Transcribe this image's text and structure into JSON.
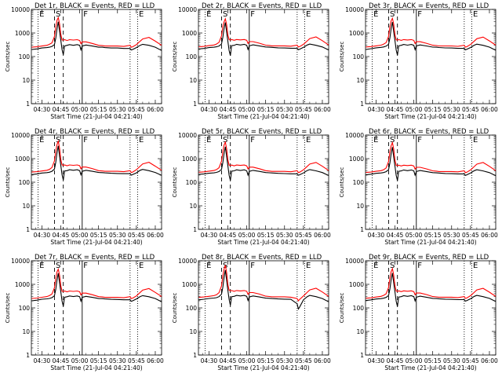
{
  "chart_data": {
    "type": "line",
    "shared": {
      "xlabel": "Start Time (21-Jul-04 04:21:40)",
      "ylabel": "Counts/sec",
      "x_ticks": [
        "04:30",
        "04:45",
        "05:00",
        "05:15",
        "05:30",
        "05:45",
        "06:00"
      ],
      "x_tick_minutes": [
        30,
        45,
        60,
        75,
        90,
        105,
        120
      ],
      "xlim_minutes": [
        21.67,
        125
      ],
      "y_scale": "log",
      "ylim": [
        1,
        10000
      ],
      "y_ticks": [
        "1",
        "10",
        "100",
        "1000",
        "10000"
      ],
      "grid": false,
      "colors": {
        "events": "#000000",
        "lld": "#ff0000"
      },
      "markers": [
        {
          "label": "E",
          "x_minute": 27,
          "style": "dotted"
        },
        {
          "label": "S",
          "x_minute": 40,
          "style": "dashed"
        },
        {
          "label": "",
          "x_minute": 47,
          "style": "dashed"
        },
        {
          "label": "F",
          "x_minute": 62,
          "style": "solid"
        },
        {
          "label": "",
          "x_minute": 100,
          "style": "dotted"
        },
        {
          "label": "E",
          "x_minute": 106,
          "style": "dotted"
        }
      ],
      "x_minutes": [
        22,
        26,
        30,
        34,
        36,
        38,
        40,
        41,
        42,
        43,
        44,
        45,
        46,
        47,
        48,
        50,
        52,
        55,
        58,
        60,
        61,
        62,
        65,
        70,
        75,
        78,
        80,
        85,
        90,
        95,
        100,
        101,
        102,
        105,
        108,
        110,
        115,
        120,
        125
      ]
    },
    "panels": [
      {
        "title": "Det 1r, BLACK = Events, RED = LLD",
        "events": [
          200,
          210,
          230,
          240,
          250,
          270,
          320,
          600,
          1500,
          3000,
          1200,
          500,
          200,
          120,
          280,
          300,
          320,
          300,
          320,
          300,
          190,
          280,
          310,
          280,
          250,
          250,
          240,
          230,
          230,
          220,
          220,
          190,
          200,
          240,
          300,
          330,
          300,
          250,
          180
        ],
        "lld": [
          250,
          260,
          280,
          300,
          330,
          380,
          700,
          1800,
          3500,
          4500,
          2500,
          900,
          500,
          500,
          520,
          480,
          520,
          500,
          520,
          480,
          350,
          420,
          420,
          360,
          300,
          290,
          280,
          280,
          280,
          270,
          300,
          250,
          260,
          320,
          450,
          560,
          650,
          450,
          300
        ]
      },
      {
        "title": "Det 2r, BLACK = Events, RED = LLD",
        "events": [
          210,
          220,
          240,
          250,
          260,
          280,
          340,
          650,
          1600,
          2800,
          1100,
          450,
          180,
          110,
          290,
          300,
          330,
          310,
          330,
          300,
          200,
          285,
          315,
          285,
          255,
          250,
          245,
          235,
          230,
          225,
          225,
          195,
          205,
          245,
          310,
          340,
          300,
          255,
          190
        ],
        "lld": [
          260,
          270,
          290,
          310,
          340,
          400,
          750,
          1900,
          3000,
          4000,
          2300,
          850,
          520,
          500,
          530,
          490,
          530,
          510,
          530,
          490,
          360,
          430,
          430,
          370,
          305,
          295,
          285,
          285,
          285,
          275,
          305,
          255,
          265,
          330,
          460,
          580,
          680,
          470,
          310
        ]
      },
      {
        "title": "Det 3r, BLACK = Events, RED = LLD",
        "events": [
          200,
          215,
          235,
          245,
          255,
          275,
          330,
          620,
          1550,
          2900,
          1150,
          480,
          190,
          115,
          285,
          300,
          325,
          305,
          325,
          300,
          195,
          282,
          312,
          282,
          252,
          250,
          242,
          232,
          230,
          222,
          222,
          192,
          202,
          242,
          305,
          335,
          300,
          252,
          185
        ],
        "lld": [
          255,
          265,
          285,
          305,
          335,
          390,
          720,
          1850,
          3300,
          4200,
          2400,
          880,
          510,
          500,
          525,
          485,
          525,
          505,
          525,
          485,
          355,
          425,
          425,
          365,
          302,
          292,
          282,
          282,
          282,
          272,
          302,
          252,
          262,
          325,
          455,
          570,
          670,
          460,
          305
        ]
      },
      {
        "title": "Det 4r, BLACK = Events, RED = LLD",
        "events": [
          210,
          225,
          245,
          255,
          265,
          290,
          360,
          700,
          1800,
          3500,
          1300,
          520,
          210,
          125,
          300,
          310,
          340,
          320,
          340,
          310,
          205,
          290,
          320,
          290,
          260,
          255,
          250,
          240,
          235,
          230,
          230,
          200,
          210,
          250,
          320,
          350,
          310,
          260,
          195
        ],
        "lld": [
          270,
          280,
          300,
          320,
          350,
          420,
          800,
          2100,
          4000,
          5500,
          2800,
          950,
          540,
          520,
          540,
          500,
          540,
          520,
          540,
          500,
          370,
          440,
          440,
          380,
          310,
          300,
          290,
          290,
          290,
          280,
          310,
          260,
          270,
          340,
          480,
          600,
          700,
          480,
          320
        ]
      },
      {
        "title": "Det 5r, BLACK = Events, RED = LLD",
        "events": [
          215,
          225,
          240,
          250,
          262,
          285,
          350,
          680,
          1700,
          3200,
          1250,
          500,
          200,
          120,
          295,
          305,
          335,
          315,
          335,
          305,
          200,
          288,
          318,
          288,
          258,
          252,
          248,
          238,
          232,
          228,
          228,
          198,
          208,
          248,
          315,
          345,
          305,
          258,
          192
        ],
        "lld": [
          265,
          275,
          295,
          315,
          345,
          410,
          780,
          2000,
          3800,
          5000,
          2700,
          920,
          530,
          510,
          535,
          495,
          535,
          515,
          535,
          495,
          365,
          435,
          435,
          375,
          308,
          298,
          288,
          288,
          288,
          278,
          308,
          258,
          268,
          335,
          470,
          590,
          690,
          475,
          315
        ]
      },
      {
        "title": "Det 6r, BLACK = Events, RED = LLD",
        "events": [
          205,
          218,
          238,
          248,
          258,
          280,
          340,
          660,
          1650,
          3100,
          1200,
          490,
          195,
          118,
          290,
          302,
          330,
          310,
          330,
          302,
          198,
          285,
          315,
          285,
          255,
          250,
          245,
          235,
          230,
          225,
          225,
          195,
          205,
          245,
          310,
          340,
          302,
          255,
          188
        ],
        "lld": [
          260,
          270,
          290,
          310,
          340,
          400,
          760,
          1950,
          3600,
          4800,
          2600,
          900,
          520,
          505,
          530,
          490,
          530,
          510,
          530,
          490,
          360,
          430,
          430,
          370,
          305,
          295,
          285,
          285,
          285,
          275,
          305,
          255,
          265,
          330,
          465,
          585,
          685,
          470,
          310
        ]
      },
      {
        "title": "Det 7r, BLACK = Events, RED = LLD",
        "events": [
          200,
          212,
          232,
          242,
          252,
          272,
          325,
          610,
          1520,
          2950,
          1180,
          490,
          195,
          118,
          282,
          298,
          322,
          302,
          322,
          298,
          192,
          280,
          310,
          280,
          250,
          248,
          240,
          230,
          228,
          220,
          220,
          190,
          200,
          240,
          302,
          332,
          298,
          250,
          182
        ],
        "lld": [
          252,
          262,
          282,
          302,
          332,
          385,
          710,
          1820,
          3400,
          4400,
          2450,
          890,
          505,
          498,
          522,
          482,
          522,
          502,
          522,
          482,
          352,
          422,
          422,
          362,
          300,
          290,
          280,
          280,
          280,
          270,
          300,
          250,
          260,
          322,
          452,
          565,
          660,
          455,
          302
        ]
      },
      {
        "title": "Det 8r, BLACK = Events, RED = LLD",
        "events": [
          220,
          232,
          252,
          262,
          272,
          300,
          380,
          750,
          2000,
          4000,
          1500,
          560,
          230,
          130,
          300,
          310,
          340,
          320,
          340,
          310,
          205,
          290,
          320,
          290,
          260,
          255,
          250,
          240,
          235,
          230,
          150,
          90,
          110,
          220,
          300,
          340,
          300,
          250,
          180
        ],
        "lld": [
          280,
          290,
          310,
          330,
          360,
          440,
          850,
          2300,
          4500,
          6500,
          3200,
          1000,
          560,
          530,
          545,
          505,
          545,
          525,
          545,
          505,
          375,
          445,
          445,
          385,
          315,
          305,
          295,
          295,
          295,
          285,
          250,
          200,
          230,
          320,
          460,
          580,
          680,
          470,
          310
        ]
      },
      {
        "title": "Det 9r, BLACK = Events, RED = LLD",
        "events": [
          205,
          218,
          238,
          248,
          258,
          278,
          335,
          640,
          1600,
          3000,
          1180,
          485,
          192,
          116,
          288,
          300,
          328,
          308,
          328,
          300,
          196,
          284,
          314,
          284,
          254,
          250,
          244,
          234,
          230,
          224,
          224,
          194,
          204,
          244,
          308,
          338,
          300,
          254,
          186
        ],
        "lld": [
          258,
          268,
          288,
          308,
          338,
          395,
          730,
          1880,
          3500,
          4600,
          2500,
          895,
          515,
          502,
          528,
          488,
          528,
          508,
          528,
          488,
          358,
          428,
          428,
          368,
          303,
          293,
          283,
          283,
          283,
          273,
          303,
          253,
          263,
          328,
          460,
          578,
          675,
          465,
          307
        ]
      }
    ]
  }
}
